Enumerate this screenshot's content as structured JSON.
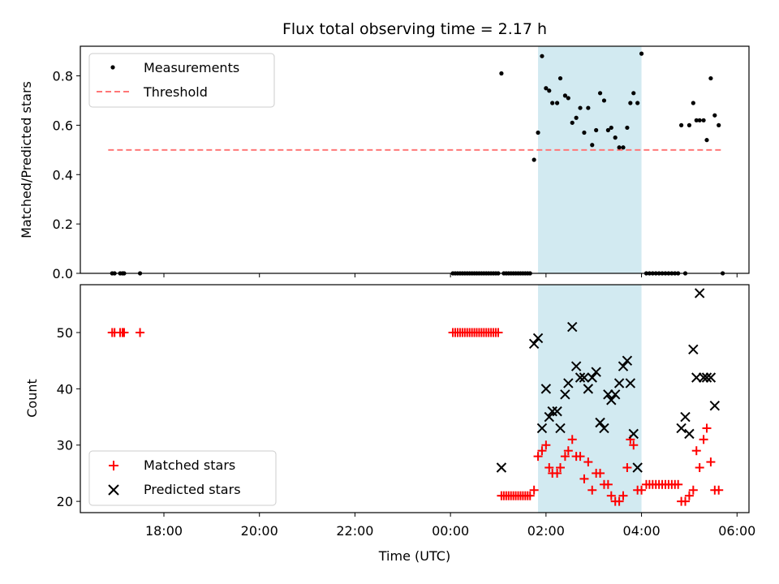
{
  "title": "Flux total observing time = 2.17 h",
  "colors": {
    "band": "#add8e6",
    "matched": "#ff0000",
    "predicted": "#000000",
    "threshold": "#ff7777",
    "measurement": "#000000"
  },
  "chart_data": [
    {
      "type": "scatter",
      "ylabel": "Matched/Predicted stars",
      "xlabel": "",
      "ylim": [
        0,
        0.92
      ],
      "yticks": [
        "0.0",
        "0.2",
        "0.4",
        "0.6",
        "0.8"
      ],
      "grid": false,
      "legend_placement": "upper-left",
      "legend": [
        "Measurements",
        "Threshold"
      ],
      "shaded_interval": [
        "01:50",
        "04:00"
      ],
      "threshold": {
        "name": "Threshold",
        "value": 0.5,
        "x_start": "16:50",
        "x_end": "05:40"
      },
      "series": [
        {
          "name": "Measurements",
          "points": [
            [
              "16:55",
              0
            ],
            [
              "16:58",
              0
            ],
            [
              "17:05",
              0
            ],
            [
              "17:08",
              0
            ],
            [
              "17:10",
              0
            ],
            [
              "17:30",
              0
            ],
            [
              "00:03",
              0
            ],
            [
              "00:06",
              0
            ],
            [
              "00:09",
              0
            ],
            [
              "00:12",
              0
            ],
            [
              "00:15",
              0
            ],
            [
              "00:18",
              0
            ],
            [
              "00:21",
              0
            ],
            [
              "00:24",
              0
            ],
            [
              "00:27",
              0
            ],
            [
              "00:30",
              0
            ],
            [
              "00:33",
              0
            ],
            [
              "00:36",
              0
            ],
            [
              "00:39",
              0
            ],
            [
              "00:42",
              0
            ],
            [
              "00:45",
              0
            ],
            [
              "00:48",
              0
            ],
            [
              "00:51",
              0
            ],
            [
              "00:54",
              0
            ],
            [
              "00:57",
              0
            ],
            [
              "01:00",
              0
            ],
            [
              "01:04",
              0.81
            ],
            [
              "01:07",
              0
            ],
            [
              "01:10",
              0
            ],
            [
              "01:13",
              0
            ],
            [
              "01:16",
              0
            ],
            [
              "01:19",
              0
            ],
            [
              "01:22",
              0
            ],
            [
              "01:25",
              0
            ],
            [
              "01:28",
              0
            ],
            [
              "01:31",
              0
            ],
            [
              "01:34",
              0
            ],
            [
              "01:37",
              0
            ],
            [
              "01:40",
              0
            ],
            [
              "01:45",
              0.46
            ],
            [
              "01:50",
              0.57
            ],
            [
              "01:55",
              0.88
            ],
            [
              "02:00",
              0.75
            ],
            [
              "02:04",
              0.74
            ],
            [
              "02:08",
              0.69
            ],
            [
              "02:14",
              0.69
            ],
            [
              "02:18",
              0.79
            ],
            [
              "02:24",
              0.72
            ],
            [
              "02:28",
              0.71
            ],
            [
              "02:33",
              0.61
            ],
            [
              "02:38",
              0.63
            ],
            [
              "02:43",
              0.67
            ],
            [
              "02:48",
              0.57
            ],
            [
              "02:53",
              0.67
            ],
            [
              "02:58",
              0.52
            ],
            [
              "03:03",
              0.58
            ],
            [
              "03:08",
              0.73
            ],
            [
              "03:13",
              0.7
            ],
            [
              "03:18",
              0.58
            ],
            [
              "03:22",
              0.59
            ],
            [
              "03:27",
              0.55
            ],
            [
              "03:32",
              0.51
            ],
            [
              "03:37",
              0.51
            ],
            [
              "03:42",
              0.59
            ],
            [
              "03:46",
              0.69
            ],
            [
              "03:50",
              0.73
            ],
            [
              "03:55",
              0.69
            ],
            [
              "04:00",
              0.89
            ],
            [
              "04:06",
              0
            ],
            [
              "04:10",
              0
            ],
            [
              "04:14",
              0
            ],
            [
              "04:18",
              0
            ],
            [
              "04:22",
              0
            ],
            [
              "04:26",
              0
            ],
            [
              "04:30",
              0
            ],
            [
              "04:34",
              0
            ],
            [
              "04:38",
              0
            ],
            [
              "04:42",
              0
            ],
            [
              "04:46",
              0
            ],
            [
              "04:50",
              0.6
            ],
            [
              "04:55",
              0
            ],
            [
              "05:00",
              0.6
            ],
            [
              "05:05",
              0.69
            ],
            [
              "05:09",
              0.62
            ],
            [
              "05:13",
              0.62
            ],
            [
              "05:18",
              0.62
            ],
            [
              "05:22",
              0.54
            ],
            [
              "05:27",
              0.79
            ],
            [
              "05:32",
              0.64
            ],
            [
              "05:37",
              0.6
            ],
            [
              "05:42",
              0
            ]
          ]
        }
      ]
    },
    {
      "type": "scatter",
      "ylabel": "Count",
      "xlabel": "Time (UTC)",
      "ylim": [
        18,
        58.5
      ],
      "yticks": [
        "20",
        "30",
        "40",
        "50"
      ],
      "xticks": [
        "18:00",
        "20:00",
        "22:00",
        "00:00",
        "02:00",
        "04:00",
        "06:00"
      ],
      "grid": false,
      "legend_placement": "lower-left",
      "legend": [
        "Matched stars",
        "Predicted stars"
      ],
      "shaded_interval": [
        "01:50",
        "04:00"
      ],
      "series": [
        {
          "name": "Matched stars",
          "marker": "+",
          "points": [
            [
              "16:55",
              50
            ],
            [
              "16:58",
              50
            ],
            [
              "17:05",
              50
            ],
            [
              "17:08",
              50
            ],
            [
              "17:10",
              50
            ],
            [
              "17:30",
              50
            ],
            [
              "00:03",
              50
            ],
            [
              "00:06",
              50
            ],
            [
              "00:09",
              50
            ],
            [
              "00:12",
              50
            ],
            [
              "00:15",
              50
            ],
            [
              "00:18",
              50
            ],
            [
              "00:21",
              50
            ],
            [
              "00:24",
              50
            ],
            [
              "00:27",
              50
            ],
            [
              "00:30",
              50
            ],
            [
              "00:33",
              50
            ],
            [
              "00:36",
              50
            ],
            [
              "00:39",
              50
            ],
            [
              "00:42",
              50
            ],
            [
              "00:45",
              50
            ],
            [
              "00:48",
              50
            ],
            [
              "00:51",
              50
            ],
            [
              "00:54",
              50
            ],
            [
              "00:57",
              50
            ],
            [
              "01:00",
              50
            ],
            [
              "01:04",
              21
            ],
            [
              "01:07",
              21
            ],
            [
              "01:10",
              21
            ],
            [
              "01:13",
              21
            ],
            [
              "01:16",
              21
            ],
            [
              "01:19",
              21
            ],
            [
              "01:22",
              21
            ],
            [
              "01:25",
              21
            ],
            [
              "01:28",
              21
            ],
            [
              "01:31",
              21
            ],
            [
              "01:34",
              21
            ],
            [
              "01:37",
              21
            ],
            [
              "01:40",
              21
            ],
            [
              "01:45",
              22
            ],
            [
              "01:50",
              28
            ],
            [
              "01:55",
              29
            ],
            [
              "02:00",
              30
            ],
            [
              "02:04",
              26
            ],
            [
              "02:08",
              25
            ],
            [
              "02:14",
              25
            ],
            [
              "02:18",
              26
            ],
            [
              "02:24",
              28
            ],
            [
              "02:28",
              29
            ],
            [
              "02:33",
              31
            ],
            [
              "02:38",
              28
            ],
            [
              "02:43",
              28
            ],
            [
              "02:48",
              24
            ],
            [
              "02:53",
              27
            ],
            [
              "02:58",
              22
            ],
            [
              "03:03",
              25
            ],
            [
              "03:08",
              25
            ],
            [
              "03:13",
              23
            ],
            [
              "03:18",
              23
            ],
            [
              "03:22",
              21
            ],
            [
              "03:27",
              20
            ],
            [
              "03:32",
              20
            ],
            [
              "03:37",
              21
            ],
            [
              "03:42",
              26
            ],
            [
              "03:46",
              31
            ],
            [
              "03:50",
              30
            ],
            [
              "03:55",
              22
            ],
            [
              "04:00",
              22
            ],
            [
              "04:06",
              23
            ],
            [
              "04:10",
              23
            ],
            [
              "04:14",
              23
            ],
            [
              "04:18",
              23
            ],
            [
              "04:22",
              23
            ],
            [
              "04:26",
              23
            ],
            [
              "04:30",
              23
            ],
            [
              "04:34",
              23
            ],
            [
              "04:38",
              23
            ],
            [
              "04:42",
              23
            ],
            [
              "04:46",
              23
            ],
            [
              "04:50",
              20
            ],
            [
              "04:55",
              20
            ],
            [
              "05:00",
              21
            ],
            [
              "05:05",
              22
            ],
            [
              "05:09",
              29
            ],
            [
              "05:13",
              26
            ],
            [
              "05:18",
              31
            ],
            [
              "05:22",
              33
            ],
            [
              "05:27",
              27
            ],
            [
              "05:32",
              22
            ],
            [
              "05:37",
              22
            ]
          ]
        },
        {
          "name": "Predicted stars",
          "marker": "x",
          "points": [
            [
              "01:04",
              26
            ],
            [
              "01:45",
              48
            ],
            [
              "01:50",
              49
            ],
            [
              "01:55",
              33
            ],
            [
              "02:00",
              40
            ],
            [
              "02:04",
              35
            ],
            [
              "02:08",
              36
            ],
            [
              "02:14",
              36
            ],
            [
              "02:18",
              33
            ],
            [
              "02:24",
              39
            ],
            [
              "02:28",
              41
            ],
            [
              "02:33",
              51
            ],
            [
              "02:38",
              44
            ],
            [
              "02:43",
              42
            ],
            [
              "02:48",
              42
            ],
            [
              "02:53",
              40
            ],
            [
              "02:58",
              42
            ],
            [
              "03:03",
              43
            ],
            [
              "03:08",
              34
            ],
            [
              "03:13",
              33
            ],
            [
              "03:18",
              39
            ],
            [
              "03:22",
              38
            ],
            [
              "03:27",
              39
            ],
            [
              "03:32",
              41
            ],
            [
              "03:37",
              44
            ],
            [
              "03:42",
              45
            ],
            [
              "03:46",
              41
            ],
            [
              "03:50",
              32
            ],
            [
              "03:55",
              26
            ],
            [
              "04:50",
              33
            ],
            [
              "04:55",
              35
            ],
            [
              "05:00",
              32
            ],
            [
              "05:05",
              47
            ],
            [
              "05:09",
              42
            ],
            [
              "05:13",
              57
            ],
            [
              "05:18",
              42
            ],
            [
              "05:22",
              42
            ],
            [
              "05:27",
              42
            ],
            [
              "05:32",
              37
            ]
          ]
        }
      ]
    }
  ]
}
